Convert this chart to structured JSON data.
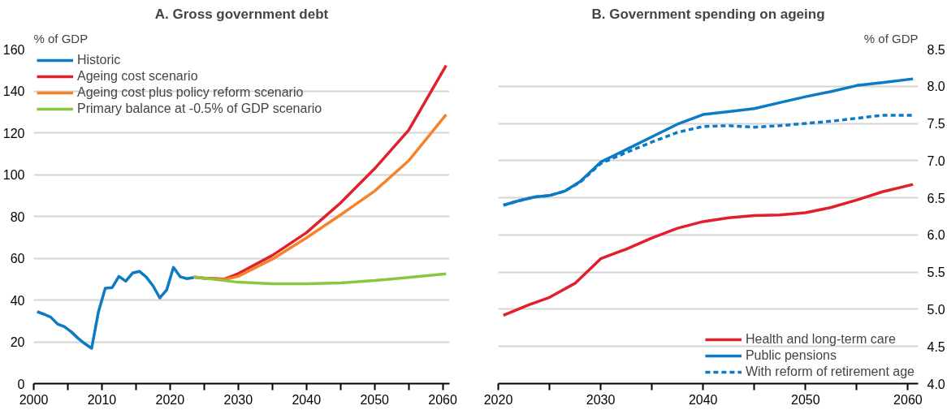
{
  "chart_data": [
    {
      "type": "line",
      "title": "A. Gross government debt",
      "ylabel": "% of GDP",
      "xlim": [
        2000,
        2061
      ],
      "ylim": [
        0,
        160
      ],
      "xticks": [
        2000,
        {
          "value": 2005,
          "label": null
        },
        2010,
        {
          "value": 2015,
          "label": null
        },
        2020,
        {
          "value": 2025,
          "label": null
        },
        2030,
        {
          "value": 2035,
          "label": null
        },
        2040,
        {
          "value": 2045,
          "label": null
        },
        2050,
        {
          "value": 2055,
          "label": null
        },
        2060
      ],
      "yticks": [
        0,
        20,
        40,
        60,
        80,
        100,
        120,
        140,
        160
      ],
      "grid": "y",
      "legend": "top left",
      "line_style": "solid",
      "series": [
        {
          "name": "Historic",
          "color": "#0c7bc4",
          "x": [
            2000.5,
            2001.5,
            2002.5,
            2003.5,
            2004.5,
            2005.5,
            2006.5,
            2007.5,
            2008.5,
            2009.5,
            2010.5,
            2011.5,
            2012.5,
            2013.5,
            2014.5,
            2015.5,
            2016.5,
            2017.5,
            2018.5,
            2019.5,
            2020.5,
            2021.5,
            2022.5,
            2023.5
          ],
          "values": [
            34.4,
            33.2,
            31.8,
            28.5,
            27.2,
            24.8,
            21.7,
            19.1,
            16.9,
            34.4,
            45.6,
            45.9,
            51.3,
            49.0,
            52.9,
            53.7,
            51.0,
            46.8,
            41.0,
            44.8,
            55.6,
            51.1,
            50.2,
            50.8
          ]
        },
        {
          "name": "Ageing cost scenario",
          "color": "#e0202a",
          "x": [
            2023.5,
            2025,
            2028,
            2030,
            2035,
            2040,
            2045,
            2050,
            2055,
            2060.5
          ],
          "values": [
            51.0,
            50.5,
            50.0,
            52.6,
            61.3,
            72.2,
            86.4,
            102.8,
            121.2,
            152.2
          ]
        },
        {
          "name": "Ageing cost plus policy reform scenario",
          "color": "#f7822a",
          "x": [
            2023.5,
            2025,
            2028,
            2030,
            2035,
            2040,
            2045,
            2050,
            2055,
            2060.5
          ],
          "values": [
            51.0,
            50.3,
            49.8,
            51.3,
            59.5,
            69.7,
            80.7,
            92.1,
            106.6,
            128.7
          ]
        },
        {
          "name": "Primary balance at -0.5% of GDP scenario",
          "color": "#8cc63f",
          "x": [
            2023.5,
            2025,
            2030,
            2035,
            2040,
            2045,
            2050,
            2055,
            2060.5
          ],
          "values": [
            51.0,
            50.5,
            48.5,
            47.8,
            47.8,
            48.2,
            49.3,
            50.8,
            52.5
          ]
        }
      ]
    },
    {
      "type": "line",
      "title": "B. Government spending on ageing",
      "ylabel": "% of GDP",
      "xlim": [
        2020,
        2061
      ],
      "ylim": [
        4.0,
        8.5
      ],
      "xticks": [
        2020,
        {
          "value": 2025,
          "label": null
        },
        2030,
        {
          "value": 2035,
          "label": null
        },
        2040,
        {
          "value": 2045,
          "label": null
        },
        2050,
        {
          "value": 2055,
          "label": null
        },
        2060
      ],
      "yticks": [
        {
          "value": 4.0,
          "label": "4.0"
        },
        {
          "value": 4.5,
          "label": "4.5"
        },
        {
          "value": 5.0,
          "label": "5.0"
        },
        {
          "value": 5.5,
          "label": "5.5"
        },
        {
          "value": 6.0,
          "label": "6.0"
        },
        {
          "value": 6.5,
          "label": "6.5"
        },
        {
          "value": 7.0,
          "label": "7.0"
        },
        {
          "value": 7.5,
          "label": "7.5"
        },
        {
          "value": 8.0,
          "label": "8.0"
        },
        {
          "value": 8.5,
          "label": "8.5"
        }
      ],
      "grid": "y",
      "legend": "bottom right",
      "series": [
        {
          "name": "Health and long-term care",
          "color": "#e0202a",
          "line_style": "solid",
          "x": [
            2020.5,
            2023,
            2025,
            2027.5,
            2030,
            2032.5,
            2035,
            2037.5,
            2040,
            2042.5,
            2045,
            2047.5,
            2050,
            2052.5,
            2055,
            2057.5,
            2060.5
          ],
          "values": [
            4.92,
            5.06,
            5.16,
            5.35,
            5.68,
            5.81,
            5.96,
            6.09,
            6.18,
            6.23,
            6.26,
            6.27,
            6.3,
            6.37,
            6.47,
            6.58,
            6.68
          ]
        },
        {
          "name": "Public pensions",
          "color": "#0c7bc4",
          "line_style": "solid",
          "x": [
            2020.5,
            2022,
            2023.5,
            2025,
            2026.5,
            2028,
            2030,
            2032.5,
            2035,
            2037.5,
            2040,
            2042.5,
            2045,
            2047.5,
            2050,
            2052.5,
            2055,
            2057.5,
            2060.5
          ],
          "values": [
            6.4,
            6.46,
            6.51,
            6.53,
            6.59,
            6.72,
            6.98,
            7.15,
            7.32,
            7.49,
            7.62,
            7.66,
            7.7,
            7.78,
            7.86,
            7.93,
            8.01,
            8.05,
            8.1
          ]
        },
        {
          "name": "With reform of retirement age",
          "color": "#0c7bc4",
          "line_style": "dashed",
          "x": [
            2020.5,
            2022,
            2023.5,
            2025,
            2026.5,
            2028,
            2030,
            2032.5,
            2035,
            2037.5,
            2040,
            2042.5,
            2045,
            2047.5,
            2050,
            2052.5,
            2055,
            2057.5,
            2060.5
          ],
          "values": [
            6.4,
            6.46,
            6.51,
            6.53,
            6.59,
            6.71,
            6.96,
            7.11,
            7.25,
            7.38,
            7.46,
            7.47,
            7.45,
            7.47,
            7.5,
            7.53,
            7.57,
            7.61,
            7.61
          ]
        }
      ]
    }
  ]
}
